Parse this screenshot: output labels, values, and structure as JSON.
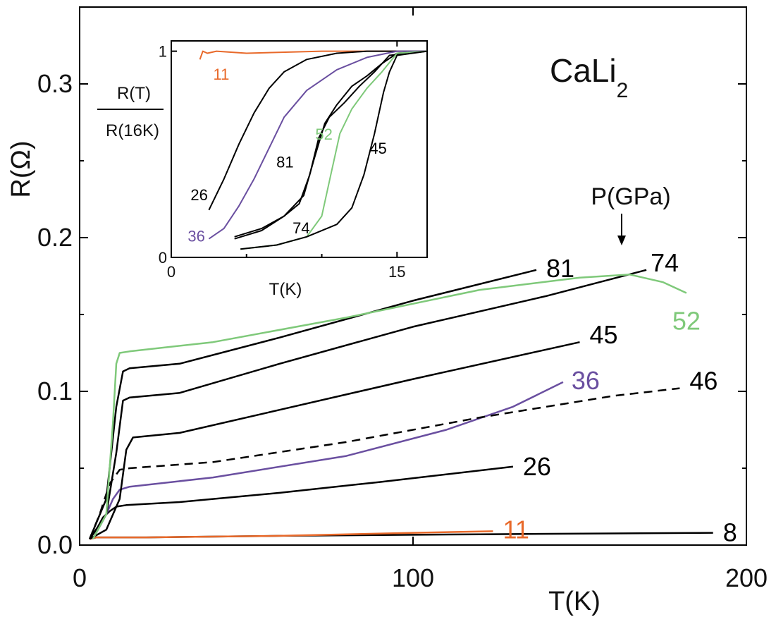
{
  "chart_data": [
    {
      "type": "line",
      "title": "CaLi",
      "title_subscript": "2",
      "xlabel": "T(K)",
      "ylabel": "R(Ω)",
      "xlim": [
        0,
        200
      ],
      "ylim": [
        0.0,
        0.35
      ],
      "xticks": [
        "0",
        "100",
        "200"
      ],
      "yticks": [
        "0.0",
        "0.1",
        "0.2",
        "0.3"
      ],
      "annotation": "P(GPa)",
      "grid": false,
      "series": [
        {
          "name": "8",
          "color": "#000000",
          "dashed": false,
          "x": [
            3,
            5,
            8,
            20,
            60,
            120,
            190
          ],
          "y": [
            0.004,
            0.005,
            0.005,
            0.005,
            0.006,
            0.007,
            0.008
          ]
        },
        {
          "name": "11",
          "color": "#e8692a",
          "dashed": false,
          "x": [
            3,
            5,
            8,
            20,
            60,
            100,
            124
          ],
          "y": [
            0.004,
            0.005,
            0.005,
            0.005,
            0.006,
            0.008,
            0.009
          ]
        },
        {
          "name": "26",
          "color": "#000000",
          "dashed": false,
          "x": [
            3,
            5,
            7,
            9,
            11,
            14,
            30,
            60,
            90,
            130
          ],
          "y": [
            0.004,
            0.01,
            0.018,
            0.022,
            0.025,
            0.026,
            0.028,
            0.034,
            0.041,
            0.051
          ]
        },
        {
          "name": "36",
          "color": "#6a4fa0",
          "dashed": false,
          "x": [
            4,
            6,
            8,
            10,
            12,
            15,
            40,
            80,
            110,
            130,
            145
          ],
          "y": [
            0.004,
            0.012,
            0.02,
            0.03,
            0.036,
            0.038,
            0.044,
            0.058,
            0.075,
            0.09,
            0.106
          ]
        },
        {
          "name": "46",
          "color": "#000000",
          "dashed": true,
          "x": [
            3,
            6,
            9,
            12,
            15,
            40,
            80,
            120,
            160,
            180
          ],
          "y": [
            0.004,
            0.02,
            0.04,
            0.049,
            0.05,
            0.054,
            0.067,
            0.083,
            0.097,
            0.102
          ]
        },
        {
          "name": "45",
          "color": "#000000",
          "dashed": false,
          "x": [
            3,
            8,
            12,
            14,
            16,
            30,
            60,
            100,
            150
          ],
          "y": [
            0.004,
            0.01,
            0.03,
            0.062,
            0.07,
            0.073,
            0.088,
            0.108,
            0.132
          ]
        },
        {
          "name": "74",
          "color": "#000000",
          "dashed": false,
          "x": [
            3,
            8,
            11,
            13,
            15,
            30,
            60,
            100,
            140,
            170
          ],
          "y": [
            0.004,
            0.02,
            0.06,
            0.094,
            0.096,
            0.099,
            0.118,
            0.142,
            0.162,
            0.179
          ]
        },
        {
          "name": "81",
          "color": "#000000",
          "dashed": false,
          "x": [
            3,
            8,
            11,
            13,
            15,
            30,
            60,
            100,
            137
          ],
          "y": [
            0.004,
            0.03,
            0.09,
            0.113,
            0.115,
            0.118,
            0.135,
            0.159,
            0.179
          ]
        },
        {
          "name": "52",
          "color": "#7fc97a",
          "dashed": false,
          "x": [
            4,
            8,
            10,
            11,
            12,
            15,
            40,
            80,
            120,
            150,
            165,
            175,
            182
          ],
          "y": [
            0.004,
            0.02,
            0.08,
            0.118,
            0.125,
            0.126,
            0.132,
            0.148,
            0.166,
            0.174,
            0.176,
            0.171,
            0.164
          ]
        }
      ],
      "series_label_colors": {
        "8": "#000000",
        "11": "#e8692a",
        "26": "#000000",
        "36": "#6a4fa0",
        "46": "#000000",
        "45": "#000000",
        "74": "#000000",
        "81": "#000000",
        "52": "#7fc97a"
      }
    },
    {
      "type": "line",
      "title": "",
      "xlabel": "T(K)",
      "ylabel_numerator": "R(T)",
      "ylabel_denominator": "R(16K)",
      "xlim": [
        0,
        17
      ],
      "ylim": [
        0,
        1.05
      ],
      "xticks": [
        "0",
        "15"
      ],
      "yticks": [
        "0",
        "1"
      ],
      "grid": false,
      "series": [
        {
          "name": "11",
          "color": "#e8692a",
          "x": [
            1.9,
            2.1,
            2.4,
            3.0,
            5.0,
            10,
            14,
            17
          ],
          "y": [
            0.96,
            1.0,
            0.99,
            1.0,
            0.99,
            1.0,
            1.0,
            1.0
          ]
        },
        {
          "name": "26",
          "color": "#000000",
          "x": [
            2.5,
            3.5,
            4.5,
            5.5,
            6.5,
            7.5,
            9,
            11,
            13,
            15,
            17
          ],
          "y": [
            0.23,
            0.38,
            0.55,
            0.7,
            0.82,
            0.9,
            0.96,
            0.99,
            1.0,
            1.0,
            1.0
          ]
        },
        {
          "name": "36",
          "color": "#6a4fa0",
          "x": [
            2.5,
            3.5,
            4.5,
            5.5,
            6.5,
            7.5,
            9,
            11,
            13,
            15,
            17
          ],
          "y": [
            0.09,
            0.14,
            0.25,
            0.38,
            0.53,
            0.68,
            0.81,
            0.91,
            0.97,
            1.0,
            1.0
          ]
        },
        {
          "name": "81",
          "color": "#000000",
          "x": [
            4.2,
            6,
            7.5,
            8.8,
            9.5,
            10.2,
            11,
            12,
            13,
            14,
            15,
            17
          ],
          "y": [
            0.09,
            0.13,
            0.2,
            0.3,
            0.48,
            0.65,
            0.74,
            0.83,
            0.88,
            0.94,
            0.99,
            1.0
          ]
        },
        {
          "name": "74",
          "color": "#000000",
          "x": [
            4.2,
            6,
            7.5,
            8.5,
            9.2,
            9.8,
            10.5,
            11.5,
            12.5,
            13.5,
            14.5,
            17
          ],
          "y": [
            0.1,
            0.14,
            0.2,
            0.26,
            0.4,
            0.58,
            0.68,
            0.75,
            0.83,
            0.9,
            0.98,
            1.0
          ]
        },
        {
          "name": "52",
          "color": "#7fc97a",
          "x": [
            4.6,
            7,
            9,
            10,
            10.6,
            11.2,
            12,
            13,
            14,
            15,
            17
          ],
          "y": [
            0.04,
            0.06,
            0.1,
            0.2,
            0.4,
            0.6,
            0.72,
            0.82,
            0.9,
            0.99,
            1.0
          ]
        },
        {
          "name": "45",
          "color": "#000000",
          "x": [
            4.6,
            7,
            9,
            11,
            12,
            12.8,
            13.5,
            14.1,
            14.5,
            15,
            17
          ],
          "y": [
            0.04,
            0.06,
            0.1,
            0.16,
            0.24,
            0.4,
            0.6,
            0.8,
            0.9,
            0.98,
            1.0
          ]
        }
      ],
      "series_label_colors": {
        "11": "#e8692a",
        "26": "#000000",
        "36": "#6a4fa0",
        "81": "#000000",
        "74": "#000000",
        "52": "#7fc97a",
        "45": "#000000"
      }
    }
  ]
}
